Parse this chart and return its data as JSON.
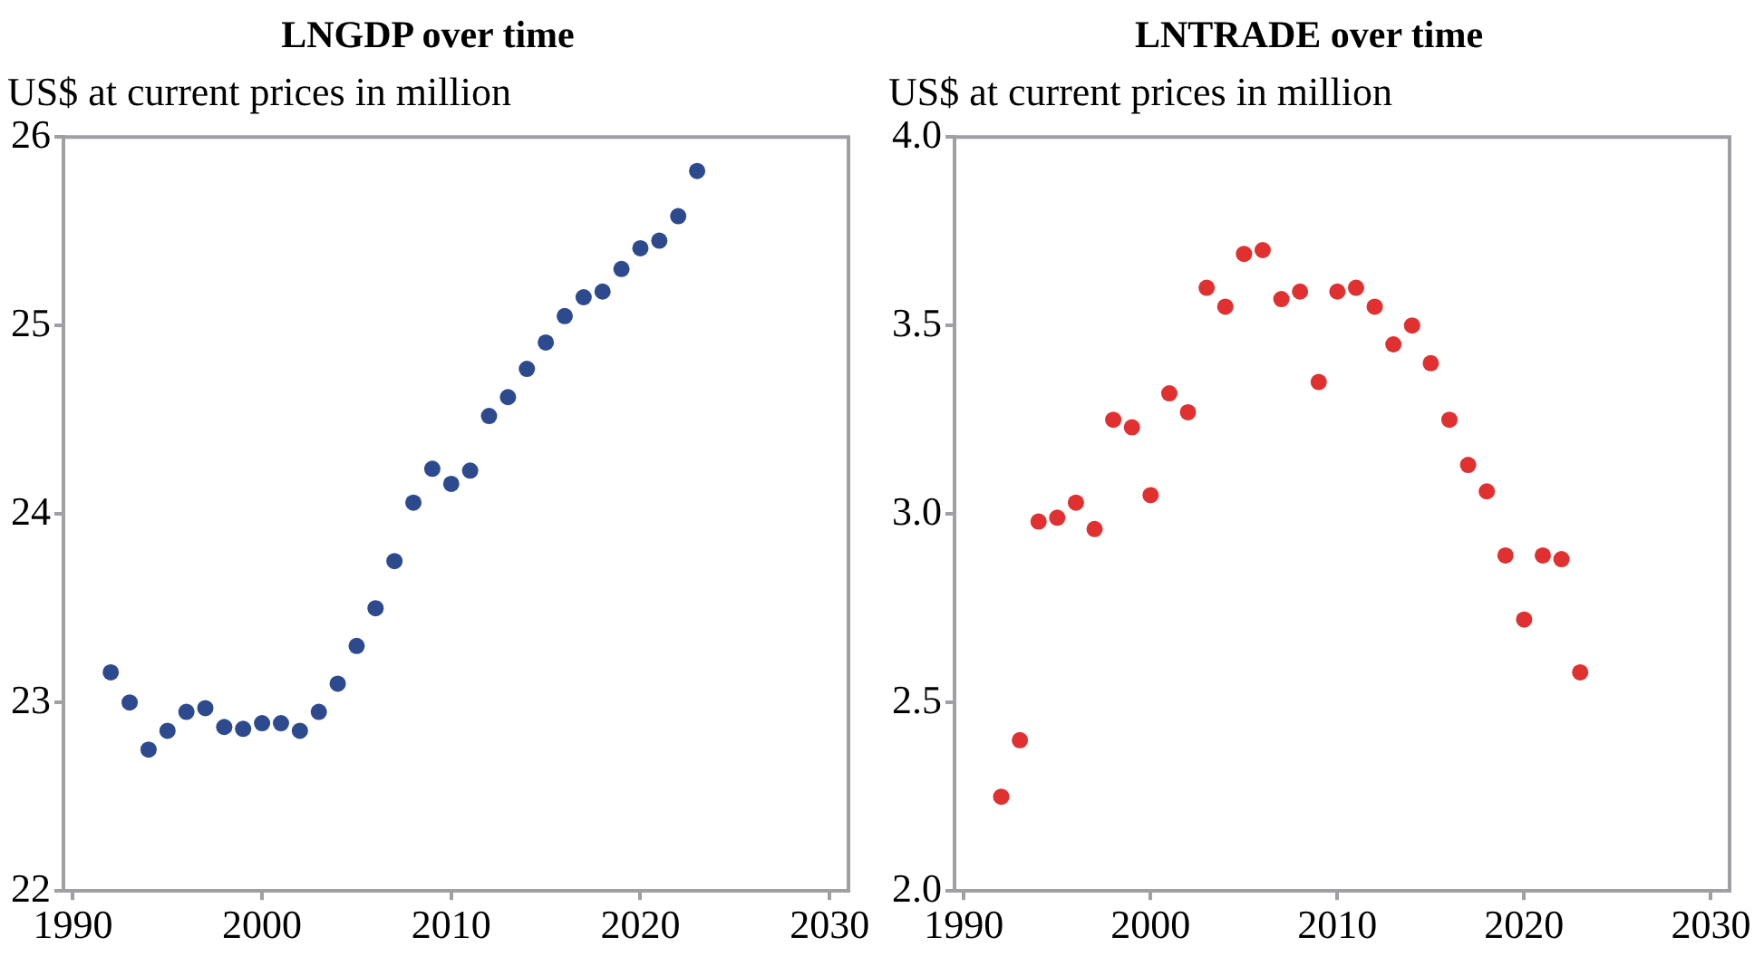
{
  "chart_data": [
    {
      "type": "scatter",
      "title": "LNGDP over time",
      "ylabel": "US$ at current prices in million",
      "x": [
        1992,
        1993,
        1994,
        1995,
        1996,
        1997,
        1998,
        1999,
        2000,
        2001,
        2002,
        2003,
        2004,
        2005,
        2006,
        2007,
        2008,
        2009,
        2010,
        2011,
        2012,
        2013,
        2014,
        2015,
        2016,
        2017,
        2018,
        2019,
        2020,
        2021,
        2022,
        2023
      ],
      "series": [
        {
          "color": "#2e4a8f",
          "values": [
            23.16,
            23.0,
            22.75,
            22.85,
            22.95,
            22.97,
            22.87,
            22.86,
            22.89,
            22.89,
            22.85,
            22.95,
            23.1,
            23.3,
            23.5,
            23.75,
            24.06,
            24.24,
            24.16,
            24.23,
            24.52,
            24.62,
            24.77,
            24.91,
            25.05,
            25.15,
            25.18,
            25.3,
            25.41,
            25.45,
            25.58,
            25.82
          ]
        }
      ],
      "xlim": [
        1989.5,
        2031
      ],
      "xticks": [
        1990,
        2000,
        2010,
        2020,
        2030
      ],
      "ylim": [
        22,
        26
      ],
      "yticks": [
        22,
        23,
        24,
        25,
        26
      ],
      "grid": false,
      "legend": false,
      "marker": "circle"
    },
    {
      "type": "scatter",
      "title": "LNTRADE over time",
      "ylabel": "US$ at current prices in million",
      "x": [
        1992,
        1993,
        1994,
        1995,
        1996,
        1997,
        1998,
        1999,
        2000,
        2001,
        2002,
        2003,
        2004,
        2005,
        2006,
        2007,
        2008,
        2009,
        2010,
        2011,
        2012,
        2013,
        2014,
        2015,
        2016,
        2017,
        2018,
        2019,
        2020,
        2021,
        2022,
        2023
      ],
      "series": [
        {
          "color": "#e03030",
          "values": [
            2.25,
            2.4,
            2.98,
            2.99,
            3.03,
            2.96,
            3.25,
            3.23,
            3.05,
            3.32,
            3.27,
            3.6,
            3.55,
            3.69,
            3.7,
            3.57,
            3.59,
            3.35,
            3.59,
            3.6,
            3.55,
            3.45,
            3.5,
            3.4,
            3.25,
            3.13,
            3.06,
            2.89,
            2.72,
            2.89,
            2.88,
            2.58
          ]
        }
      ],
      "xlim": [
        1989.5,
        2031
      ],
      "xticks": [
        1990,
        2000,
        2010,
        2020,
        2030
      ],
      "ylim": [
        2.0,
        4.0
      ],
      "yticks": [
        {
          "value": 2.0,
          "label": "2.0"
        },
        {
          "value": 2.5,
          "label": "2.5"
        },
        {
          "value": 3.0,
          "label": "3.0"
        },
        {
          "value": 3.5,
          "label": "3.5"
        },
        {
          "value": 4.0,
          "label": "4.0"
        }
      ],
      "grid": false,
      "legend": false,
      "marker": "circle"
    }
  ]
}
